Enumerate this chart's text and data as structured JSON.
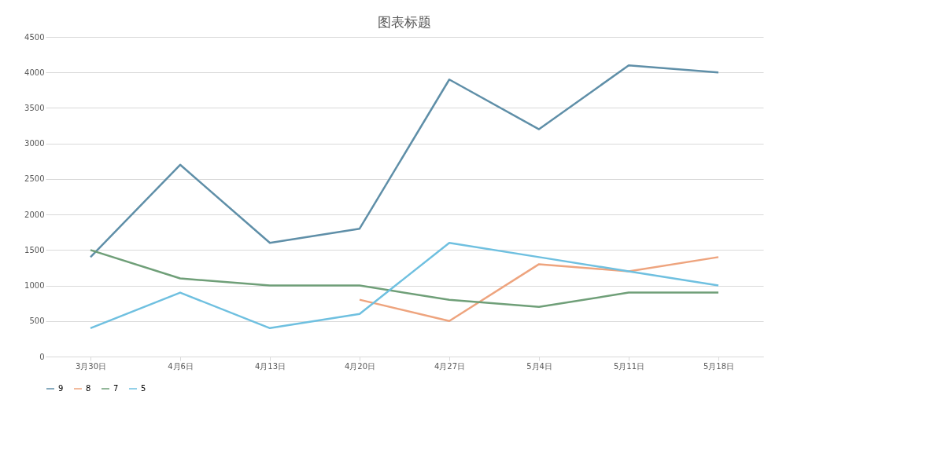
{
  "chart_data": {
    "type": "line",
    "title": "图表标题",
    "categories": [
      "3月30日",
      "4月6日",
      "4月13日",
      "4月20日",
      "4月27日",
      "5月4日",
      "5月11日",
      "5月18日"
    ],
    "series": [
      {
        "name": "9",
        "color": "#5f8fa8",
        "values": [
          1400,
          2700,
          1600,
          1800,
          3900,
          3200,
          4100,
          4000
        ]
      },
      {
        "name": "8",
        "color": "#eea47e",
        "values": [
          null,
          null,
          null,
          800,
          500,
          1300,
          1200,
          1400
        ]
      },
      {
        "name": "7",
        "color": "#6f9f78",
        "values": [
          1500,
          1100,
          1000,
          1000,
          800,
          700,
          900,
          900
        ]
      },
      {
        "name": "5",
        "color": "#6fc0e0",
        "values": [
          400,
          900,
          400,
          600,
          1600,
          1400,
          1200,
          1000
        ]
      }
    ],
    "ylim": [
      0,
      4500
    ],
    "yticks": [
      0,
      500,
      1000,
      1500,
      2000,
      2500,
      3000,
      3500,
      4000,
      4500
    ],
    "grid": "y",
    "legend": "bottom",
    "marker": "none",
    "line_style": "solid"
  }
}
